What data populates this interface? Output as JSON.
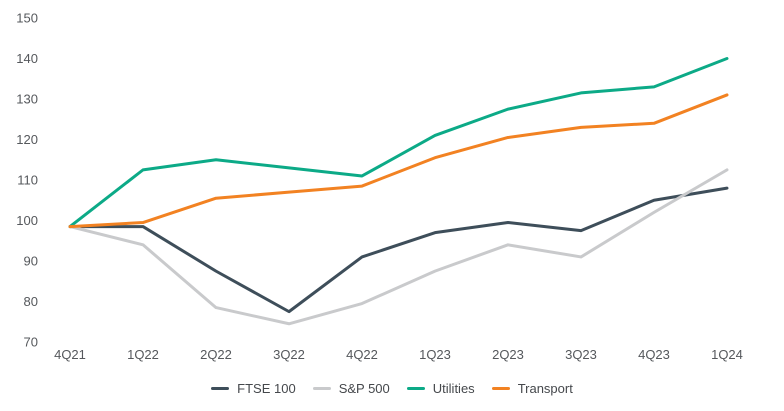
{
  "chart_data": {
    "type": "line",
    "title": "",
    "xlabel": "",
    "ylabel": "",
    "categories": [
      "4Q21",
      "1Q22",
      "2Q22",
      "3Q22",
      "4Q22",
      "1Q23",
      "2Q23",
      "3Q23",
      "4Q23",
      "1Q24"
    ],
    "series": [
      {
        "name": "FTSE 100",
        "color": "#3e4e5a",
        "values": [
          98.5,
          98.5,
          87.5,
          77.5,
          91,
          97,
          99.5,
          97.5,
          105,
          108
        ]
      },
      {
        "name": "S&P 500",
        "color": "#c9cacc",
        "values": [
          98.5,
          94,
          78.5,
          74.5,
          79.5,
          87.5,
          94,
          91,
          102,
          112.5
        ]
      },
      {
        "name": "Utilities",
        "color": "#0caa87",
        "values": [
          98.5,
          112.5,
          115,
          113,
          111,
          121,
          127.5,
          131.5,
          133,
          140
        ]
      },
      {
        "name": "Transport",
        "color": "#f28222",
        "values": [
          98.5,
          99.5,
          105.5,
          107,
          108.5,
          115.5,
          120.5,
          123,
          124,
          131
        ]
      }
    ],
    "ylim": [
      70,
      150
    ],
    "ytick_step": 10,
    "grid": false,
    "axis_lines": false,
    "legend_position": "bottom",
    "axis_label_color": "#55585c",
    "legend_text_color": "#45484c",
    "background_color": "#ffffff"
  }
}
